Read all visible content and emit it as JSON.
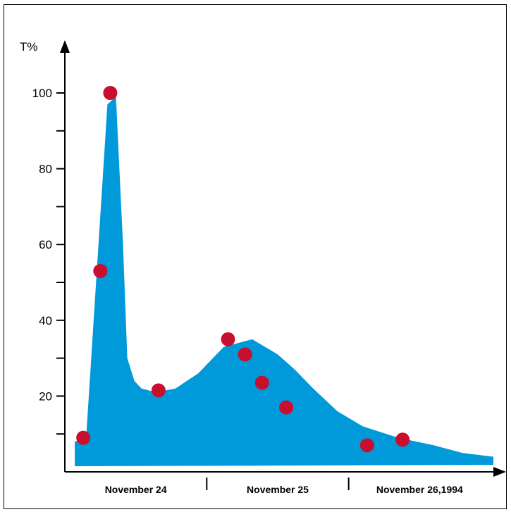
{
  "chart_data": {
    "type": "area",
    "title": "",
    "ylabel": "T%",
    "xlabel": "",
    "ylim": [
      0,
      100
    ],
    "yticks": [
      20,
      40,
      60,
      80,
      100
    ],
    "ytick_labels": [
      "20",
      "40",
      "60",
      "80",
      "100"
    ],
    "categories": [
      "November 24",
      "November 25",
      "November 26,1994"
    ],
    "x_range": [
      0,
      3
    ],
    "area": {
      "color": "#0099da",
      "x": [
        0.07,
        0.15,
        0.22,
        0.3,
        0.36,
        0.41,
        0.44,
        0.49,
        0.54,
        0.64,
        0.78,
        0.94,
        1.12,
        1.32,
        1.5,
        1.62,
        1.75,
        1.92,
        2.1,
        2.35,
        2.6,
        2.8,
        3.02
      ],
      "y": [
        8,
        9,
        50,
        97,
        99,
        60,
        30,
        24,
        22,
        21,
        22,
        26,
        33,
        35,
        31,
        27,
        22,
        16,
        12,
        9,
        7,
        5,
        4
      ]
    },
    "points": {
      "color": "#c8102e",
      "x": [
        0.13,
        0.25,
        0.32,
        0.66,
        1.15,
        1.27,
        1.39,
        1.56,
        2.13,
        2.38
      ],
      "y": [
        9,
        53,
        100,
        21.5,
        35,
        31,
        23.5,
        17,
        7,
        8.5
      ]
    }
  }
}
